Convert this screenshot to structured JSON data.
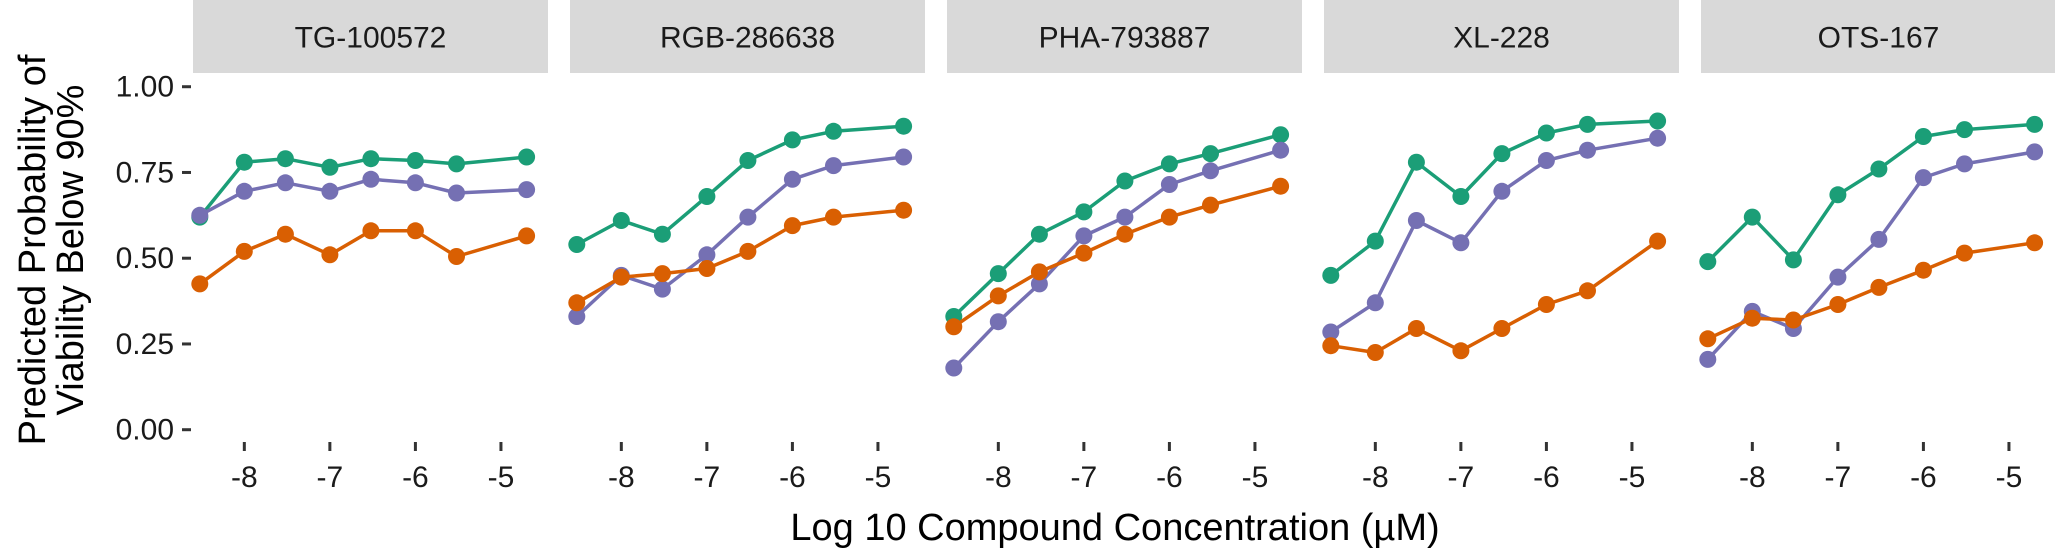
{
  "chart_data": {
    "type": "line",
    "facet_labels": [
      "TG-100572",
      "RGB-286638",
      "PHA-793887",
      "XL-228",
      "OTS-167"
    ],
    "xlabel": "Log 10 Compound Concentration (µM)",
    "ylabel_lines": [
      "Predicted Probability of",
      "Viability Below 90%"
    ],
    "y_ticks": [
      "0.00",
      "0.25",
      "0.50",
      "0.75",
      "1.00"
    ],
    "x_ticks": [
      "-8",
      "-7",
      "-6",
      "-5"
    ],
    "xlim": [
      -8.6,
      -4.45
    ],
    "ylim": [
      -0.03,
      1.04
    ],
    "grid": false,
    "legend": "none",
    "series_colors": [
      "#1b9e77",
      "#7570b3",
      "#d95f02"
    ],
    "x": [
      -8.52,
      -8.0,
      -7.52,
      -7.0,
      -6.52,
      -6.0,
      -5.52,
      -4.7
    ],
    "panels": [
      {
        "series": [
          {
            "values": [
              0.62,
              0.78,
              0.79,
              0.765,
              0.79,
              0.785,
              0.775,
              0.795
            ]
          },
          {
            "values": [
              0.625,
              0.695,
              0.72,
              0.695,
              0.73,
              0.72,
              0.69,
              0.7
            ]
          },
          {
            "values": [
              0.425,
              0.52,
              0.57,
              0.51,
              0.58,
              0.58,
              0.505,
              0.565
            ]
          }
        ]
      },
      {
        "series": [
          {
            "values": [
              0.54,
              0.61,
              0.57,
              0.68,
              0.785,
              0.845,
              0.87,
              0.885
            ]
          },
          {
            "values": [
              0.33,
              0.45,
              0.41,
              0.51,
              0.62,
              0.73,
              0.77,
              0.795
            ]
          },
          {
            "values": [
              0.37,
              0.445,
              0.455,
              0.47,
              0.52,
              0.595,
              0.62,
              0.64
            ]
          }
        ]
      },
      {
        "series": [
          {
            "values": [
              0.33,
              0.455,
              0.57,
              0.635,
              0.725,
              0.775,
              0.805,
              0.86
            ]
          },
          {
            "values": [
              0.18,
              0.315,
              0.425,
              0.565,
              0.62,
              0.715,
              0.755,
              0.815
            ]
          },
          {
            "values": [
              0.3,
              0.39,
              0.46,
              0.515,
              0.57,
              0.62,
              0.655,
              0.71
            ]
          }
        ]
      },
      {
        "series": [
          {
            "values": [
              0.45,
              0.55,
              0.78,
              0.68,
              0.805,
              0.865,
              0.89,
              0.9
            ]
          },
          {
            "values": [
              0.285,
              0.37,
              0.61,
              0.545,
              0.695,
              0.785,
              0.815,
              0.85
            ]
          },
          {
            "values": [
              0.245,
              0.225,
              0.295,
              0.23,
              0.295,
              0.365,
              0.405,
              0.55
            ]
          }
        ]
      },
      {
        "series": [
          {
            "values": [
              0.49,
              0.62,
              0.495,
              0.685,
              0.76,
              0.855,
              0.875,
              0.89
            ]
          },
          {
            "values": [
              0.205,
              0.345,
              0.295,
              0.445,
              0.555,
              0.735,
              0.775,
              0.81
            ]
          },
          {
            "values": [
              0.265,
              0.325,
              0.32,
              0.365,
              0.415,
              0.465,
              0.515,
              0.545
            ]
          }
        ]
      }
    ]
  }
}
